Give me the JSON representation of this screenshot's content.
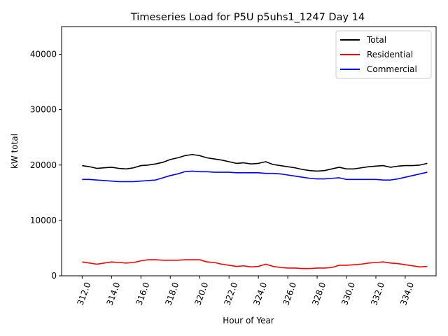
{
  "chart_data": {
    "type": "line",
    "title": "Timeseries Load for P5U p5uhs1_1247  Day 14",
    "xlabel": "Hour of Year",
    "ylabel": "kW total",
    "xlim": [
      310.6,
      336.1
    ],
    "ylim": [
      0,
      45000
    ],
    "xticks": [
      312,
      314,
      316,
      318,
      320,
      322,
      324,
      326,
      328,
      330,
      332,
      334
    ],
    "xtick_labels": [
      "312.0",
      "314.0",
      "316.0",
      "318.0",
      "320.0",
      "322.0",
      "324.0",
      "326.0",
      "328.0",
      "330.0",
      "332.0",
      "334.0"
    ],
    "yticks": [
      0,
      10000,
      20000,
      30000,
      40000
    ],
    "ytick_labels": [
      "0",
      "10000",
      "20000",
      "30000",
      "40000"
    ],
    "legend_position": "top-right",
    "x": [
      312.0,
      312.5,
      313.0,
      313.5,
      314.0,
      314.5,
      315.0,
      315.5,
      316.0,
      316.5,
      317.0,
      317.5,
      318.0,
      318.5,
      319.0,
      319.5,
      320.0,
      320.5,
      321.0,
      321.5,
      322.0,
      322.5,
      323.0,
      323.5,
      324.0,
      324.5,
      325.0,
      325.5,
      326.0,
      326.5,
      327.0,
      327.5,
      328.0,
      328.5,
      329.0,
      329.5,
      330.0,
      330.5,
      331.0,
      331.5,
      332.0,
      332.5,
      333.0,
      333.5,
      334.0,
      334.5,
      335.0,
      335.5
    ],
    "series": [
      {
        "name": "Total",
        "color": "#000000",
        "values": [
          19900,
          19700,
          19400,
          19500,
          19600,
          19400,
          19300,
          19500,
          19900,
          20000,
          20200,
          20500,
          21000,
          21300,
          21700,
          21900,
          21700,
          21300,
          21100,
          20900,
          20600,
          20300,
          20400,
          20200,
          20300,
          20600,
          20100,
          19900,
          19700,
          19500,
          19200,
          19000,
          18900,
          19000,
          19300,
          19600,
          19300,
          19300,
          19500,
          19700,
          19800,
          19900,
          19600,
          19800,
          19900,
          19900,
          20000,
          20300
        ]
      },
      {
        "name": "Residential",
        "color": "#ff0000",
        "values": [
          2500,
          2300,
          2100,
          2300,
          2500,
          2400,
          2300,
          2400,
          2700,
          2900,
          2900,
          2800,
          2800,
          2800,
          2900,
          2900,
          2900,
          2500,
          2400,
          2100,
          1900,
          1700,
          1800,
          1600,
          1700,
          2100,
          1700,
          1500,
          1400,
          1400,
          1300,
          1300,
          1400,
          1400,
          1500,
          1900,
          1900,
          2000,
          2100,
          2300,
          2400,
          2500,
          2300,
          2200,
          2000,
          1800,
          1600,
          1700
        ]
      },
      {
        "name": "Commercial",
        "color": "#0000ff",
        "values": [
          17400,
          17400,
          17300,
          17200,
          17100,
          17000,
          17000,
          17000,
          17100,
          17200,
          17300,
          17700,
          18100,
          18400,
          18800,
          18900,
          18800,
          18800,
          18700,
          18700,
          18700,
          18600,
          18600,
          18600,
          18600,
          18500,
          18500,
          18400,
          18200,
          18000,
          17800,
          17600,
          17500,
          17500,
          17600,
          17700,
          17400,
          17400,
          17400,
          17400,
          17400,
          17300,
          17300,
          17500,
          17800,
          18100,
          18400,
          18700
        ]
      }
    ]
  }
}
